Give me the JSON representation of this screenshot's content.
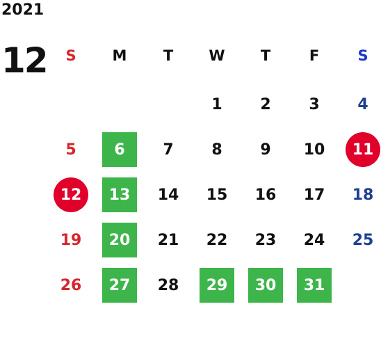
{
  "year": "2021",
  "month": "12",
  "weekdays": [
    "S",
    "M",
    "T",
    "W",
    "T",
    "F",
    "S"
  ],
  "colors": {
    "sunday_text": "#d7252c",
    "saturday_text": "#1f3f91",
    "weekday_text": "#111111",
    "green_highlight": "#3db54a",
    "red_highlight": "#e0002a"
  },
  "weeks": [
    [
      {
        "day": "",
        "style": "none"
      },
      {
        "day": "",
        "style": "none"
      },
      {
        "day": "",
        "style": "none"
      },
      {
        "day": "1",
        "style": "none"
      },
      {
        "day": "2",
        "style": "none"
      },
      {
        "day": "3",
        "style": "none"
      },
      {
        "day": "4",
        "style": "none"
      }
    ],
    [
      {
        "day": "5",
        "style": "none"
      },
      {
        "day": "6",
        "style": "green"
      },
      {
        "day": "7",
        "style": "none"
      },
      {
        "day": "8",
        "style": "none"
      },
      {
        "day": "9",
        "style": "none"
      },
      {
        "day": "10",
        "style": "none"
      },
      {
        "day": "11",
        "style": "red-circle"
      }
    ],
    [
      {
        "day": "12",
        "style": "red-circle"
      },
      {
        "day": "13",
        "style": "green"
      },
      {
        "day": "14",
        "style": "none"
      },
      {
        "day": "15",
        "style": "none"
      },
      {
        "day": "16",
        "style": "none"
      },
      {
        "day": "17",
        "style": "none"
      },
      {
        "day": "18",
        "style": "none"
      }
    ],
    [
      {
        "day": "19",
        "style": "none"
      },
      {
        "day": "20",
        "style": "green"
      },
      {
        "day": "21",
        "style": "none"
      },
      {
        "day": "22",
        "style": "none"
      },
      {
        "day": "23",
        "style": "none"
      },
      {
        "day": "24",
        "style": "none"
      },
      {
        "day": "25",
        "style": "none"
      }
    ],
    [
      {
        "day": "26",
        "style": "none"
      },
      {
        "day": "27",
        "style": "green"
      },
      {
        "day": "28",
        "style": "none"
      },
      {
        "day": "29",
        "style": "green"
      },
      {
        "day": "30",
        "style": "green"
      },
      {
        "day": "31",
        "style": "green"
      },
      {
        "day": "",
        "style": "none"
      }
    ]
  ]
}
